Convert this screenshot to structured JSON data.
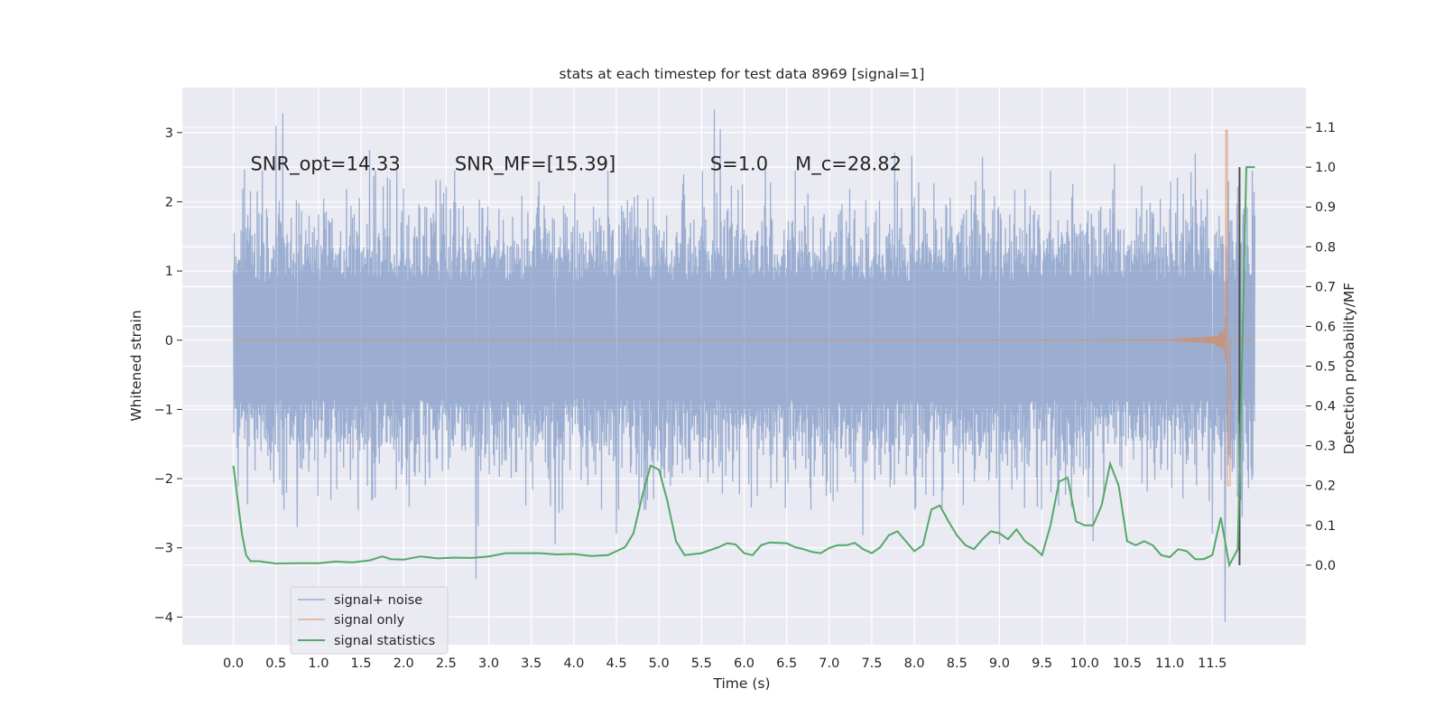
{
  "chart_data": {
    "type": "line",
    "title": "stats at each timestep for test data 8969 [signal=1]",
    "xlabel": "Time (s)",
    "ylabel": "Whitened strain",
    "ylabel_right": "Detection probability/MF",
    "xlim": [
      -0.6,
      12.6
    ],
    "ylim": [
      -4.4,
      3.65
    ],
    "ylim_right": [
      -0.2,
      1.2
    ],
    "x_ticks": [
      "0.0",
      "0.5",
      "1.0",
      "1.5",
      "2.0",
      "2.5",
      "3.0",
      "3.5",
      "4.0",
      "4.5",
      "5.0",
      "5.5",
      "6.0",
      "6.5",
      "7.0",
      "7.5",
      "8.0",
      "8.5",
      "9.0",
      "9.5",
      "10.0",
      "10.5",
      "11.0",
      "11.5"
    ],
    "y_ticks": [
      3,
      2,
      1,
      0,
      -1,
      -2,
      -3,
      -4
    ],
    "y_tick_labels": [
      "3",
      "2",
      "1",
      "0",
      "−1",
      "−2",
      "−3",
      "−4"
    ],
    "y_right_ticks": [
      1.1,
      1.0,
      0.9,
      0.8,
      0.7,
      0.6,
      0.5,
      0.4,
      0.3,
      0.2,
      0.1,
      0.0
    ],
    "y_right_tick_labels": [
      "1.1",
      "1.0",
      "0.9",
      "0.8",
      "0.7",
      "0.6",
      "0.5",
      "0.4",
      "0.3",
      "0.2",
      "0.1",
      "0.0"
    ],
    "grid": true,
    "legend_position": "bottom-left",
    "annotations": [
      {
        "text": "SNR_opt=14.33",
        "x": 0.2,
        "y": 2.55
      },
      {
        "text": "SNR_MF=[15.39]",
        "x": 2.6,
        "y": 2.55
      },
      {
        "text": "S=1.0",
        "x": 5.6,
        "y": 2.55
      },
      {
        "text": "M_c=28.82",
        "x": 6.6,
        "y": 2.55
      }
    ],
    "series": [
      {
        "name": "signal+ noise",
        "color": "#4c72b0",
        "axis": "left",
        "style": "dense noise, band roughly ±1.4 with spikes to about ±3",
        "x_range": [
          0.0,
          12.0
        ],
        "spikes": [
          {
            "x": 0.5,
            "y": 3.1
          },
          {
            "x": 0.58,
            "y": 3.28
          },
          {
            "x": 5.65,
            "y": 3.33
          },
          {
            "x": 5.72,
            "y": 3.05
          },
          {
            "x": 2.85,
            "y": -3.45
          },
          {
            "x": 11.65,
            "y": -4.07
          },
          {
            "x": 0.75,
            "y": -2.7
          },
          {
            "x": 3.78,
            "y": -2.95
          },
          {
            "x": 4.5,
            "y": -2.8
          },
          {
            "x": 9.0,
            "y": -2.95
          },
          {
            "x": 10.1,
            "y": -2.9
          },
          {
            "x": 11.5,
            "y": -2.8
          },
          {
            "x": 11.3,
            "y": 2.7
          },
          {
            "x": 10.35,
            "y": 2.55
          },
          {
            "x": 1.6,
            "y": 2.75
          },
          {
            "x": 8.8,
            "y": 2.65
          },
          {
            "x": 6.25,
            "y": 2.5
          },
          {
            "x": 11.85,
            "y": -2.55
          }
        ]
      },
      {
        "name": "signal only",
        "color": "#dd8452",
        "axis": "left",
        "style": "chirp, amplitude grows toward merger",
        "merger_time": 11.68,
        "peak_positive": 3.03,
        "peak_negative": -2.1,
        "x_range": [
          0.0,
          12.0
        ]
      },
      {
        "name": "signal statistics",
        "color": "#55a868",
        "axis": "right",
        "x": [
          0.0,
          0.1,
          0.15,
          0.2,
          0.3,
          0.5,
          0.7,
          1.0,
          1.2,
          1.4,
          1.6,
          1.75,
          1.85,
          2.0,
          2.2,
          2.4,
          2.6,
          2.8,
          3.0,
          3.2,
          3.4,
          3.6,
          3.8,
          4.0,
          4.2,
          4.4,
          4.6,
          4.7,
          4.8,
          4.9,
          5.0,
          5.1,
          5.2,
          5.3,
          5.5,
          5.7,
          5.8,
          5.9,
          6.0,
          6.1,
          6.2,
          6.3,
          6.5,
          6.6,
          6.7,
          6.8,
          6.9,
          7.0,
          7.1,
          7.2,
          7.3,
          7.4,
          7.5,
          7.6,
          7.7,
          7.8,
          7.9,
          8.0,
          8.1,
          8.2,
          8.3,
          8.4,
          8.5,
          8.6,
          8.7,
          8.8,
          8.9,
          9.0,
          9.1,
          9.2,
          9.3,
          9.4,
          9.5,
          9.6,
          9.7,
          9.8,
          9.9,
          10.0,
          10.1,
          10.2,
          10.3,
          10.4,
          10.5,
          10.6,
          10.7,
          10.8,
          10.9,
          11.0,
          11.1,
          11.2,
          11.3,
          11.4,
          11.5,
          11.6,
          11.7,
          11.8,
          11.9,
          12.0
        ],
        "values": [
          0.25,
          0.08,
          0.025,
          0.01,
          0.01,
          0.004,
          0.005,
          0.005,
          0.009,
          0.007,
          0.012,
          0.022,
          0.015,
          0.014,
          0.022,
          0.017,
          0.019,
          0.018,
          0.022,
          0.03,
          0.03,
          0.03,
          0.027,
          0.028,
          0.023,
          0.025,
          0.045,
          0.08,
          0.17,
          0.25,
          0.24,
          0.16,
          0.06,
          0.025,
          0.03,
          0.045,
          0.055,
          0.052,
          0.03,
          0.025,
          0.05,
          0.057,
          0.055,
          0.045,
          0.04,
          0.033,
          0.03,
          0.043,
          0.05,
          0.05,
          0.056,
          0.04,
          0.03,
          0.045,
          0.075,
          0.085,
          0.06,
          0.035,
          0.05,
          0.14,
          0.15,
          0.11,
          0.075,
          0.05,
          0.04,
          0.065,
          0.085,
          0.08,
          0.065,
          0.09,
          0.06,
          0.045,
          0.025,
          0.1,
          0.21,
          0.22,
          0.11,
          0.1,
          0.1,
          0.15,
          0.255,
          0.2,
          0.06,
          0.05,
          0.06,
          0.05,
          0.025,
          0.02,
          0.04,
          0.035,
          0.015,
          0.015,
          0.025,
          0.12,
          0.0,
          0.04,
          1.0,
          1.0
        ]
      }
    ],
    "vertical_marker": {
      "color": "#4d4d4d",
      "x": 11.82
    }
  },
  "legend": {
    "items": [
      {
        "label": "signal+ noise",
        "color": "#4c72b0"
      },
      {
        "label": "signal only",
        "color": "#dd8452"
      },
      {
        "label": "signal statistics",
        "color": "#55a868"
      }
    ]
  },
  "colors": {
    "plot_background": "#eaeaf2",
    "grid": "#ffffff",
    "text": "#262626"
  }
}
